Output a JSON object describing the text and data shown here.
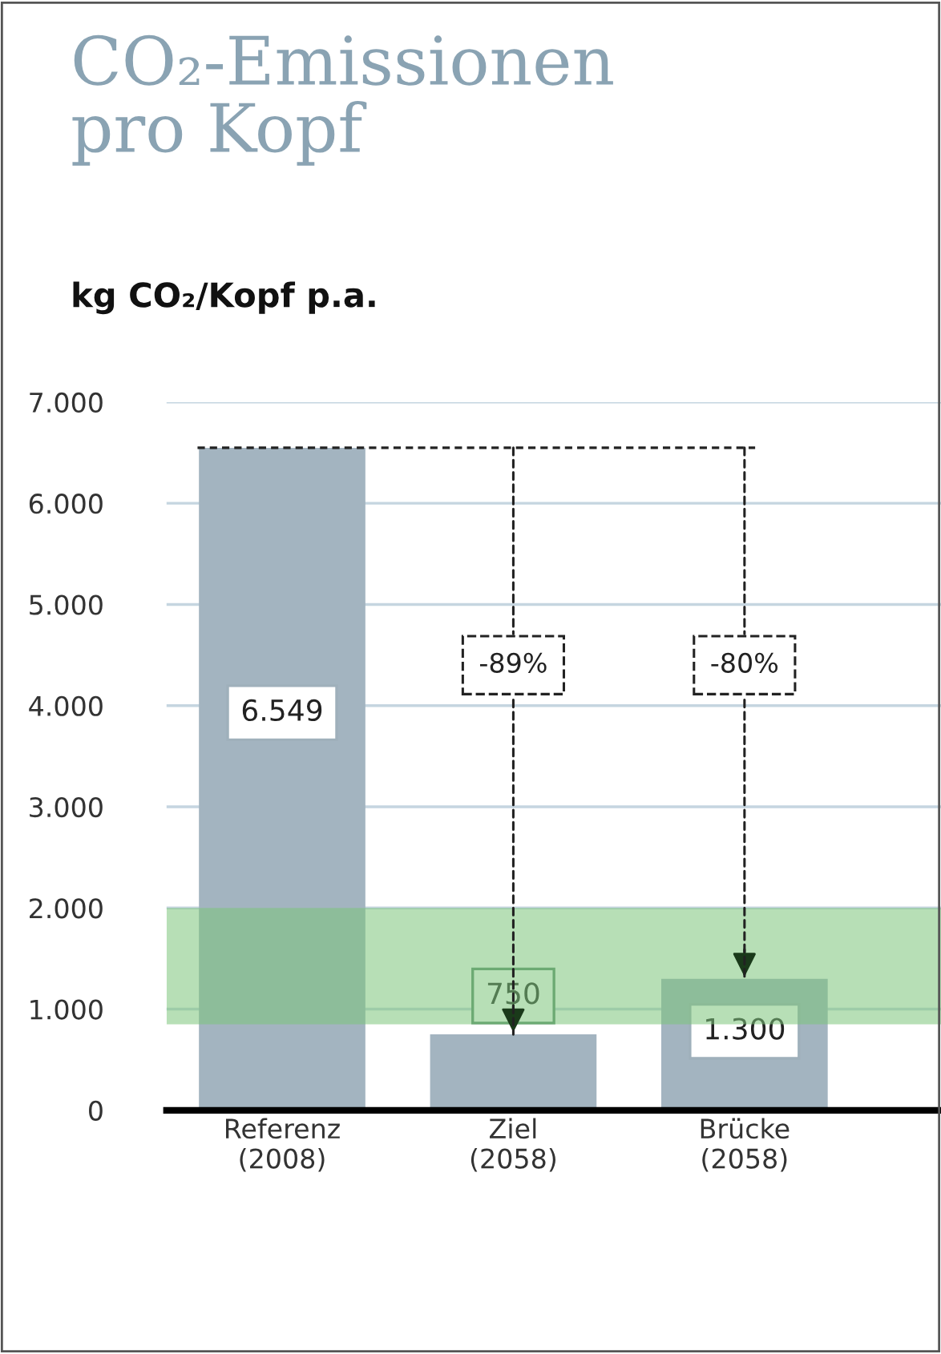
{
  "chart_data": {
    "type": "bar",
    "title": "CO₂-Emissionen\npro Kopf",
    "ylabel": "kg CO₂/Kopf p.a.",
    "categories": [
      "Referenz\n(2008)",
      "Ziel\n(2058)",
      "Brücke\n(2058)"
    ],
    "values": [
      6549,
      750,
      1300
    ],
    "color": "#a3b4c0",
    "value_labels": [
      "6.549",
      "750",
      "1.300"
    ],
    "ylim": [
      0,
      7000
    ],
    "yticks": [
      {
        "value": 0,
        "label": "0"
      },
      {
        "value": 1000,
        "label": "1.000"
      },
      {
        "value": 2000,
        "label": "2.000"
      },
      {
        "value": 3000,
        "label": "3.000"
      },
      {
        "value": 4000,
        "label": "4.000"
      },
      {
        "value": 5000,
        "label": "5.000"
      },
      {
        "value": 6000,
        "label": "6.000"
      },
      {
        "value": 7000,
        "label": "7.000"
      }
    ],
    "grid": "y",
    "ref_lines": [
      {
        "axis": "y",
        "value": 6549,
        "line_style": "dashed",
        "color": "#222222"
      }
    ],
    "bands": [
      {
        "axis": "y",
        "from": 850,
        "to": 2000,
        "color": "#7cc47a"
      }
    ],
    "annotations": [
      {
        "text": "-89%",
        "x": "Ziel\n(2058)",
        "y": 750
      },
      {
        "text": "-80%",
        "x": "Brücke\n(2058)",
        "y": 1300
      }
    ]
  }
}
